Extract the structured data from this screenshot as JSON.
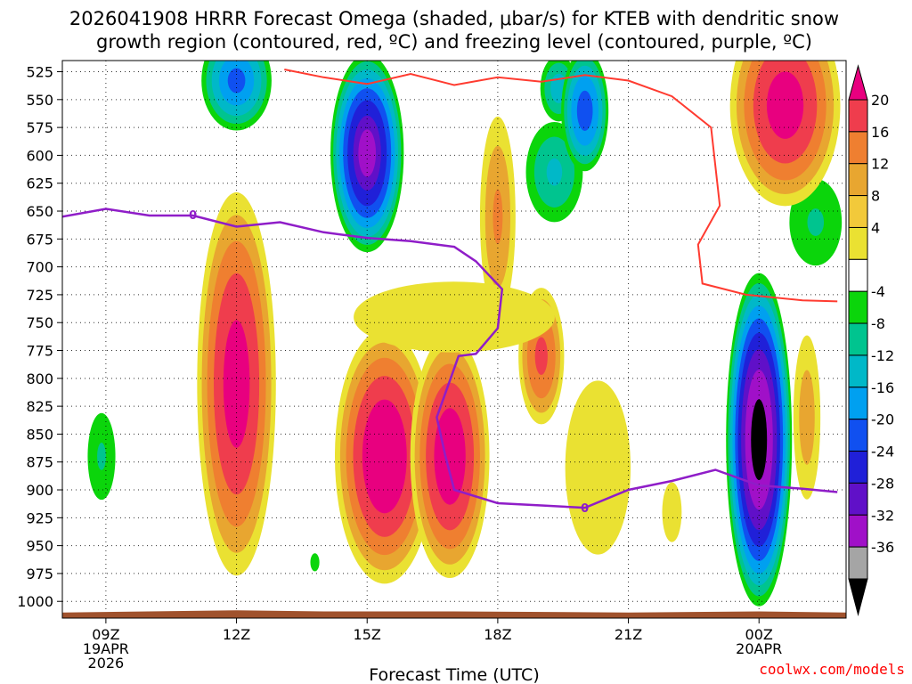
{
  "chart_data": {
    "type": "contour",
    "title_line1": "2026041908 HRRR Forecast Omega (shaded, μbar/s) for KTEB with dendritic snow",
    "title_line2": "growth region (contoured, red, ºC) and freezing level (contoured, purple, ºC)",
    "xlabel": "Forecast Time (UTC)",
    "credit": "coolwx.com/models",
    "x_range_hours": [
      8,
      26
    ],
    "y_range_hpa": [
      1015,
      515
    ],
    "y_ticks": [
      525,
      550,
      575,
      600,
      625,
      650,
      675,
      700,
      725,
      750,
      775,
      800,
      825,
      850,
      875,
      900,
      925,
      950,
      975,
      1000
    ],
    "x_ticks": [
      {
        "hour": 9,
        "lines": [
          "09Z",
          "19APR",
          "2026"
        ]
      },
      {
        "hour": 12,
        "lines": [
          "12Z"
        ]
      },
      {
        "hour": 15,
        "lines": [
          "15Z"
        ]
      },
      {
        "hour": 18,
        "lines": [
          "18Z"
        ]
      },
      {
        "hour": 21,
        "lines": [
          "21Z"
        ]
      },
      {
        "hour": 24,
        "lines": [
          "00Z",
          "20APR"
        ]
      }
    ],
    "colorbar": {
      "labels": [
        "20",
        "16",
        "12",
        "8",
        "4",
        "-4",
        "-8",
        "-12",
        "-16",
        "-20",
        "-24",
        "-28",
        "-32",
        "-36"
      ],
      "colors": [
        "#e8007f",
        "#ef3d4d",
        "#ef7f30",
        "#e8a630",
        "#f2c93a",
        "#eae132",
        "#ffffff",
        "#0bd50b",
        "#00c48f",
        "#00b8c8",
        "#00a0f0",
        "#1050f0",
        "#2020d8",
        "#6010c8",
        "#a010c8",
        "#a5a5a5",
        "#000000"
      ]
    },
    "freezing_level_label": "0",
    "freezing_level": [
      [
        8,
        655
      ],
      [
        9,
        648
      ],
      [
        10,
        654
      ],
      [
        11,
        654
      ],
      [
        12,
        664
      ],
      [
        13,
        660
      ],
      [
        14,
        669
      ],
      [
        15,
        674
      ],
      [
        16,
        677
      ],
      [
        17,
        682
      ],
      [
        17.5,
        695
      ],
      [
        18.1,
        720
      ],
      [
        18,
        755
      ],
      [
        17.5,
        778
      ],
      [
        17.1,
        780
      ],
      [
        16.6,
        835
      ],
      [
        16.8,
        870
      ],
      [
        17,
        900
      ],
      [
        18,
        912
      ],
      [
        19,
        914
      ],
      [
        20,
        916
      ],
      [
        21,
        900
      ],
      [
        22,
        892
      ],
      [
        23,
        882
      ],
      [
        24,
        896
      ],
      [
        25,
        899
      ],
      [
        25.8,
        902
      ]
    ],
    "dgz_isotherm": [
      [
        13.1,
        523
      ],
      [
        14,
        530
      ],
      [
        15,
        536
      ],
      [
        16,
        527
      ],
      [
        17,
        537
      ],
      [
        18,
        530
      ],
      [
        19,
        534
      ],
      [
        20,
        528
      ],
      [
        21,
        533
      ],
      [
        22,
        547
      ],
      [
        22.9,
        575
      ],
      [
        23.1,
        645
      ],
      [
        22.6,
        680
      ],
      [
        22.7,
        715
      ],
      [
        23.7,
        725
      ],
      [
        25,
        730
      ],
      [
        25.8,
        731
      ]
    ],
    "omega_regions": [
      {
        "name": "ascent-upper-left",
        "cx": 12.0,
        "cy": 533,
        "rx": 0.9,
        "ry": 50,
        "vmin": -20
      },
      {
        "name": "ascent-upper-15z",
        "cx": 15.0,
        "cy": 598,
        "rx": 0.9,
        "ry": 95,
        "vmin": -32
      },
      {
        "name": "ascent-19z-upper",
        "cx": 19.4,
        "cy": 540,
        "rx": 0.5,
        "ry": 35,
        "vmin": -14
      },
      {
        "name": "ascent-19z-mid",
        "cx": 19.3,
        "cy": 615,
        "rx": 0.8,
        "ry": 55,
        "vmin": -12
      },
      {
        "name": "ascent-20z",
        "cx": 20.0,
        "cy": 560,
        "rx": 0.6,
        "ry": 60,
        "vmin": -22
      },
      {
        "name": "ascent-left-low",
        "cx": 8.9,
        "cy": 870,
        "rx": 0.45,
        "ry": 55,
        "vmin": -8
      },
      {
        "name": "ascent-late-right",
        "cx": 25.3,
        "cy": 660,
        "rx": 0.85,
        "ry": 55,
        "vmin": -8
      },
      {
        "name": "ascent-14z-tiny",
        "cx": 13.8,
        "cy": 965,
        "rx": 0.18,
        "ry": 14,
        "vmin": -6
      },
      {
        "name": "ascent-core-00z",
        "cx": 24.0,
        "cy": 855,
        "rx": 0.8,
        "ry": 158,
        "vmin": -38
      },
      {
        "name": "descent-12z",
        "cx": 12.0,
        "cy": 805,
        "rx": 1.0,
        "ry": 190,
        "vmin": 22
      },
      {
        "name": "descent-15z",
        "cx": 15.4,
        "cy": 870,
        "rx": 1.25,
        "ry": 125,
        "vmin": 24
      },
      {
        "name": "descent-17z",
        "cx": 16.9,
        "cy": 870,
        "rx": 1.0,
        "ry": 120,
        "vmin": 23
      },
      {
        "name": "descent-18z-upper",
        "cx": 18.0,
        "cy": 655,
        "rx": 0.5,
        "ry": 110,
        "vmin": 12
      },
      {
        "name": "descent-19z",
        "cx": 19.0,
        "cy": 780,
        "rx": 0.6,
        "ry": 70,
        "vmin": 17
      },
      {
        "name": "descent-13z-band",
        "cx": 17.0,
        "cy": 745,
        "rx": 4.0,
        "ry": 55,
        "vmin": 6
      },
      {
        "name": "descent-20z-low",
        "cx": 20.3,
        "cy": 880,
        "rx": 1.3,
        "ry": 135,
        "vmin": 6
      },
      {
        "name": "descent-right-upper",
        "cx": 24.6,
        "cy": 555,
        "rx": 1.4,
        "ry": 100,
        "vmin": 22
      },
      {
        "name": "descent-22z-low",
        "cx": 22.0,
        "cy": 920,
        "rx": 0.5,
        "ry": 60,
        "vmin": 5
      },
      {
        "name": "descent-25z-low",
        "cx": 25.1,
        "cy": 835,
        "rx": 0.4,
        "ry": 95,
        "vmin": 10
      }
    ],
    "terrain_level_hpa": [
      [
        8,
        1010
      ],
      [
        12,
        1008
      ],
      [
        14,
        1009
      ],
      [
        17,
        1009
      ],
      [
        21,
        1010
      ],
      [
        24,
        1009
      ],
      [
        26,
        1010
      ]
    ]
  }
}
